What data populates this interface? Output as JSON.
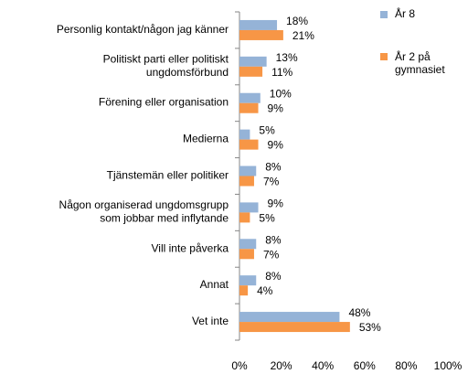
{
  "chart_data": {
    "type": "bar",
    "orientation": "horizontal",
    "categories": [
      "Personlig kontakt/någon jag känner",
      "Politiskt parti eller politiskt\nungdomsförbund",
      "Förening eller organisation",
      "Medierna",
      "Tjänstemän eller politiker",
      "Någon organiserad ungdomsgrupp\nsom jobbar med inflytande",
      "Vill inte påverka",
      "Annat",
      "Vet inte"
    ],
    "series": [
      {
        "name": "År  8",
        "color": "#95b3d7",
        "values": [
          18,
          13,
          10,
          5,
          8,
          9,
          8,
          8,
          48
        ],
        "value_labels": [
          "18%",
          "13%",
          "10%",
          "5%",
          "8%",
          "9%",
          "8%",
          "8%",
          "48%"
        ]
      },
      {
        "name": "År 2 på\ngymnasiet",
        "color": "#f79646",
        "values": [
          21,
          11,
          9,
          9,
          7,
          5,
          7,
          4,
          53
        ],
        "value_labels": [
          "21%",
          "11%",
          "9%",
          "9%",
          "7%",
          "5%",
          "7%",
          "4%",
          "53%"
        ]
      }
    ],
    "xlim": [
      0,
      100
    ],
    "xticks": [
      {
        "value": 0,
        "label": "0%"
      },
      {
        "value": 20,
        "label": "20%"
      },
      {
        "value": 40,
        "label": "40%"
      },
      {
        "value": 60,
        "label": "60%"
      },
      {
        "value": 80,
        "label": "80%"
      },
      {
        "value": 100,
        "label": "100%"
      }
    ],
    "legend": "right",
    "grid": false
  }
}
